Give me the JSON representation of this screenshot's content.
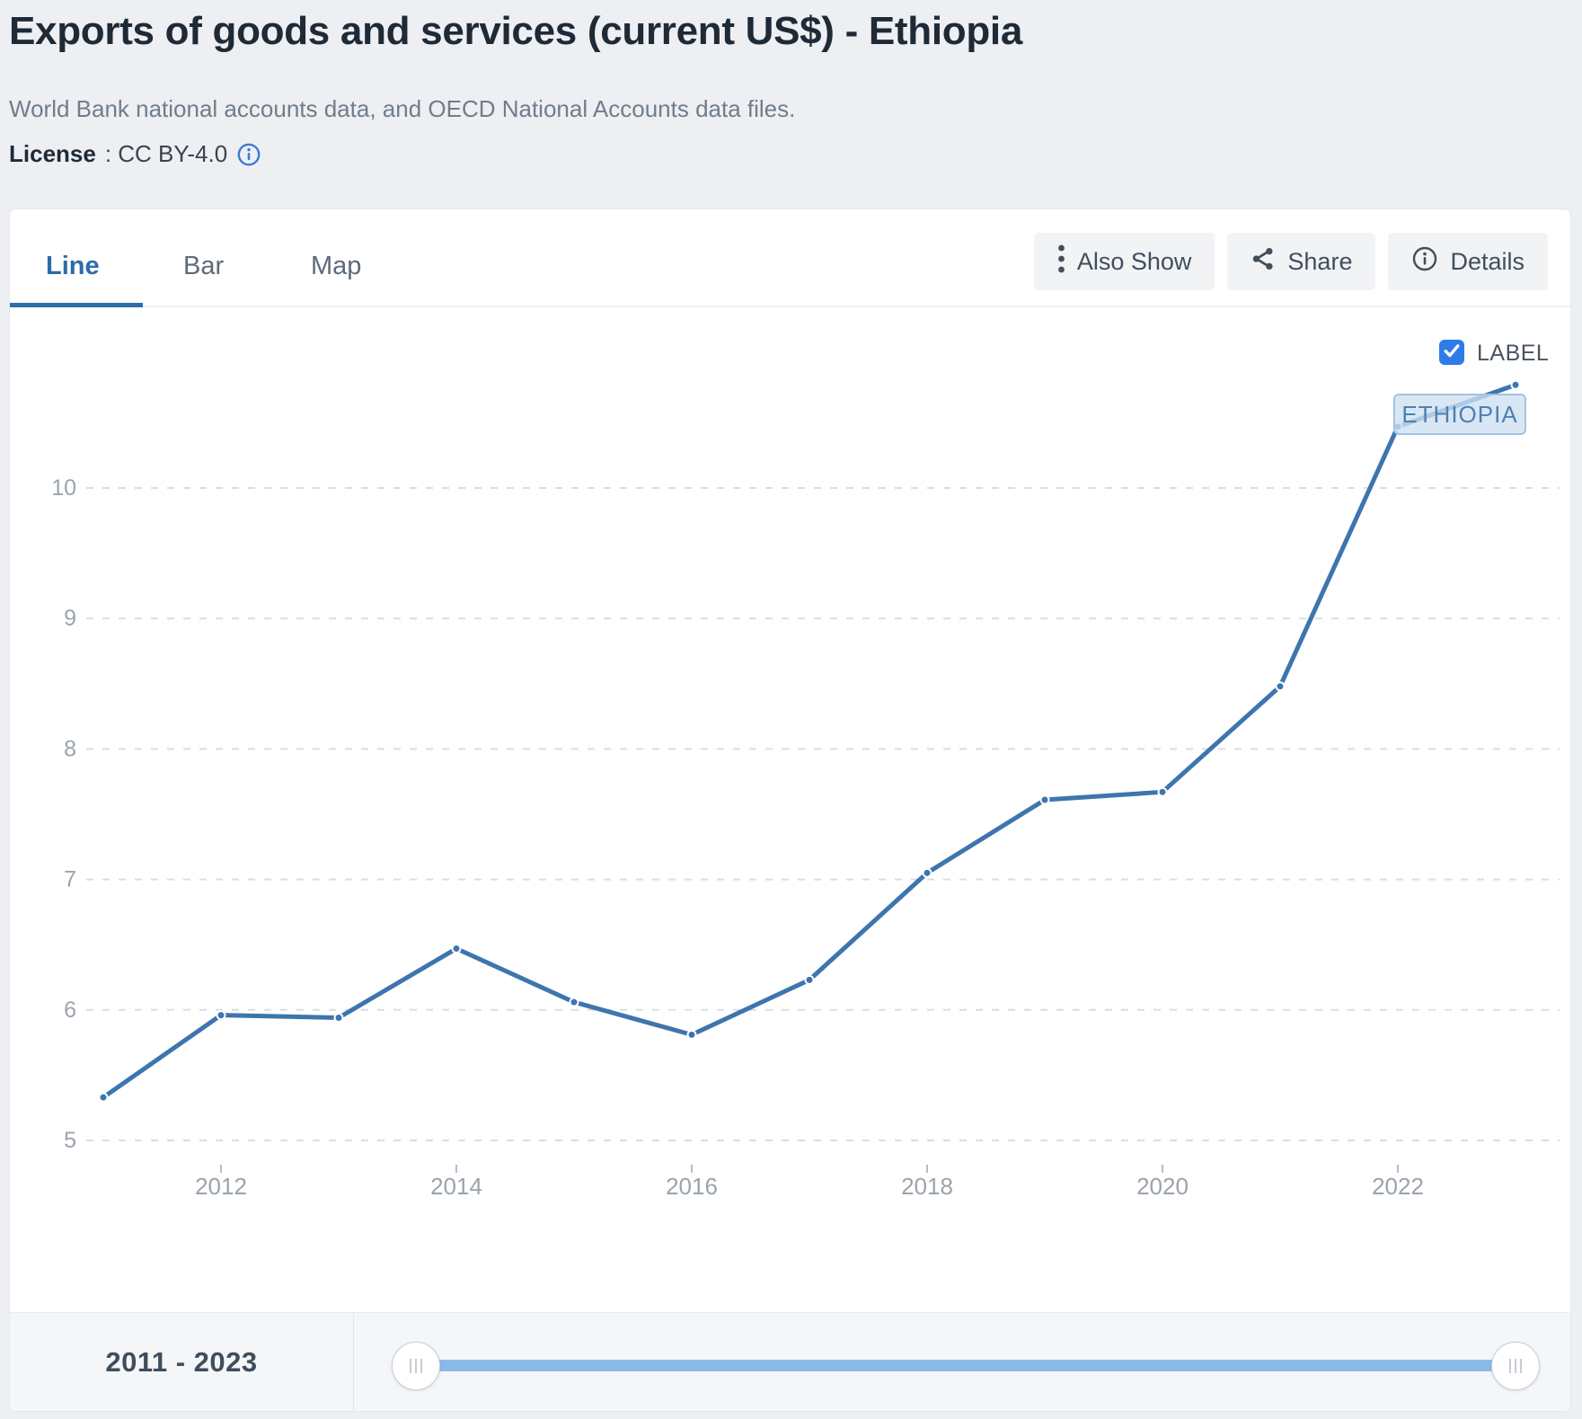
{
  "header": {
    "title": "Exports of goods and services (current US$) - Ethiopia",
    "subtitle": "World Bank national accounts data, and OECD National Accounts data files.",
    "license_label": "License",
    "license_value": ": CC BY-4.0"
  },
  "tabs": [
    {
      "label": "Line",
      "active": true
    },
    {
      "label": "Bar",
      "active": false
    },
    {
      "label": "Map",
      "active": false
    }
  ],
  "toolbar": {
    "also_show_label": "Also Show",
    "share_label": "Share",
    "details_label": "Details"
  },
  "legend": {
    "checkbox_label": "LABEL",
    "checkbox_checked": true,
    "series_tag": "ETHIOPIA"
  },
  "timeline": {
    "range_label": "2011 - 2023",
    "start_year": "2011",
    "end_year": "2023"
  },
  "chart_data": {
    "type": "line",
    "title": "Exports of goods and services (current US$) - Ethiopia",
    "unit": "current US$ (billions)",
    "x": [
      2011,
      2012,
      2013,
      2014,
      2015,
      2016,
      2017,
      2018,
      2019,
      2020,
      2021,
      2022,
      2023
    ],
    "series": [
      {
        "name": "ETHIOPIA",
        "color": "#3e75ae",
        "values": [
          5.33,
          5.96,
          5.94,
          6.47,
          6.06,
          5.81,
          6.23,
          7.05,
          7.61,
          7.67,
          8.48,
          10.47,
          10.79
        ]
      }
    ],
    "yticks": [
      5,
      6,
      7,
      8,
      9,
      10
    ],
    "xticks": [
      2012,
      2014,
      2016,
      2018,
      2020,
      2022
    ],
    "ylim": [
      4.4,
      11.4
    ],
    "xlim": [
      2011,
      2023
    ],
    "grid": "horizontal-dashed",
    "legend_position": "top-right"
  },
  "colors": {
    "accent_blue": "#2d6ca8",
    "line_blue": "#3e75ae",
    "checkbox_blue": "#2e7bea",
    "slider_track": "#8abbe8",
    "grid": "#dadde3",
    "tick_text": "#9ba3ac",
    "tick_mark": "#b7bdc5",
    "label_box_bg": "#cee0f2",
    "label_box_border": "#a3c2e0",
    "label_box_text": "#4d80b2"
  }
}
